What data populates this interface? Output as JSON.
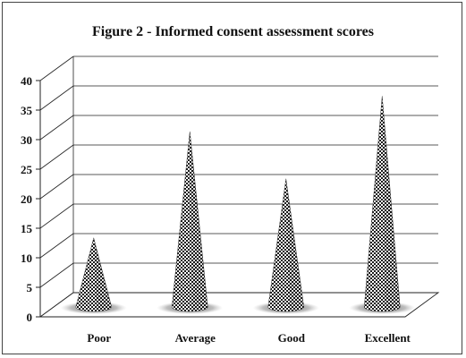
{
  "chart_data": {
    "type": "bar",
    "bar_shape": "cone",
    "title": "Figure 2 - Informed consent assessment scores",
    "categories": [
      "Poor",
      "Average",
      "Good",
      "Excellent"
    ],
    "values": [
      12,
      30,
      22,
      36
    ],
    "ylim": [
      0,
      40
    ],
    "yticks": [
      0,
      5,
      10,
      15,
      20,
      25,
      30,
      35,
      40
    ],
    "xlabel": "",
    "ylabel": "",
    "grid": true,
    "legend": "none",
    "pattern": "black-white checkerboard",
    "colors": {
      "mark_dark": "#1a1a1a",
      "mark_light": "#ffffff",
      "grid": "#222222",
      "floor": "#ffffff"
    }
  }
}
